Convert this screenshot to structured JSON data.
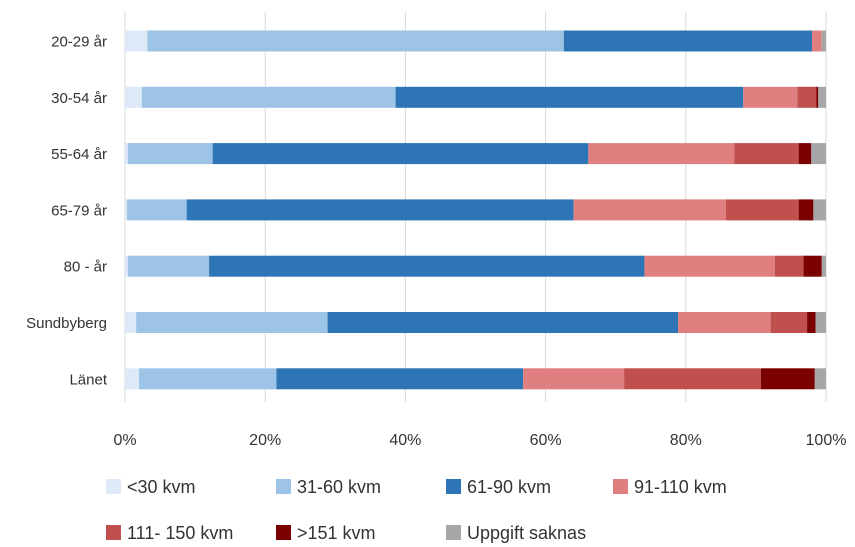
{
  "chart_data": {
    "type": "bar",
    "orientation": "horizontal",
    "stacked": "percent",
    "categories": [
      "20-29 år",
      "30-54 år",
      "55-64 år",
      "65-79 år",
      "80 - år",
      "Sundbyberg",
      "Länet"
    ],
    "x_ticks": [
      "0%",
      "20%",
      "40%",
      "60%",
      "80%",
      "100%"
    ],
    "xlim": [
      0,
      100
    ],
    "grid": "vertical",
    "legend_position": "bottom",
    "series": [
      {
        "name": "<30 kvm",
        "color": "#dde9f6",
        "values": [
          3.2,
          2.4,
          0.4,
          0.3,
          0.4,
          1.6,
          2.0
        ]
      },
      {
        "name": "31-60 kvm",
        "color": "#9dc3e6",
        "values": [
          59.4,
          36.2,
          12.1,
          8.5,
          11.6,
          27.3,
          19.6
        ]
      },
      {
        "name": "61-90 kvm",
        "color": "#2e75b6",
        "values": [
          35.4,
          49.6,
          53.6,
          55.2,
          62.1,
          50.0,
          35.2
        ]
      },
      {
        "name": "91-110 kvm",
        "color": "#e07f7f",
        "values": [
          1.4,
          7.7,
          20.8,
          21.7,
          18.6,
          13.2,
          14.4
        ]
      },
      {
        "name": "111- 150 kvm",
        "color": "#c0504d",
        "values": [
          0.0,
          2.7,
          9.2,
          10.4,
          4.1,
          5.2,
          19.5
        ]
      },
      {
        "name": ">151 kvm",
        "color": "#7b0000",
        "values": [
          0.0,
          0.3,
          1.8,
          2.1,
          2.6,
          1.2,
          7.7
        ]
      },
      {
        "name": "Uppgift saknas",
        "color": "#a6a6a6",
        "values": [
          0.6,
          1.1,
          2.1,
          1.8,
          0.6,
          1.5,
          1.6
        ]
      }
    ]
  }
}
